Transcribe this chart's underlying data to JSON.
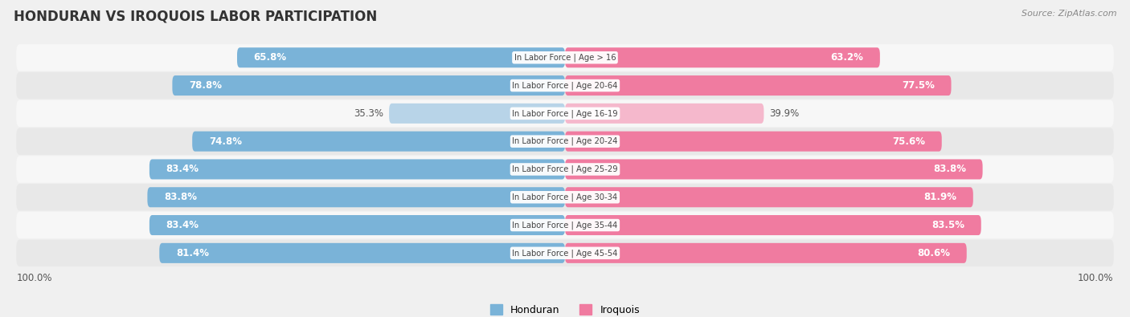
{
  "title": "HONDURAN VS IROQUOIS LABOR PARTICIPATION",
  "source": "Source: ZipAtlas.com",
  "categories": [
    "In Labor Force | Age > 16",
    "In Labor Force | Age 20-64",
    "In Labor Force | Age 16-19",
    "In Labor Force | Age 20-24",
    "In Labor Force | Age 25-29",
    "In Labor Force | Age 30-34",
    "In Labor Force | Age 35-44",
    "In Labor Force | Age 45-54"
  ],
  "honduran": [
    65.8,
    78.8,
    35.3,
    74.8,
    83.4,
    83.8,
    83.4,
    81.4
  ],
  "iroquois": [
    63.2,
    77.5,
    39.9,
    75.6,
    83.8,
    81.9,
    83.5,
    80.6
  ],
  "honduran_color_full": "#7ab3d8",
  "honduran_color_light": "#b8d4e8",
  "iroquois_color_full": "#f07ba0",
  "iroquois_color_light": "#f5b8cc",
  "background_color": "#f0f0f0",
  "row_bg_light": "#f7f7f7",
  "row_bg_dark": "#e8e8e8",
  "value_fontsize": 8.5,
  "title_fontsize": 12,
  "legend_fontsize": 9,
  "source_fontsize": 8
}
